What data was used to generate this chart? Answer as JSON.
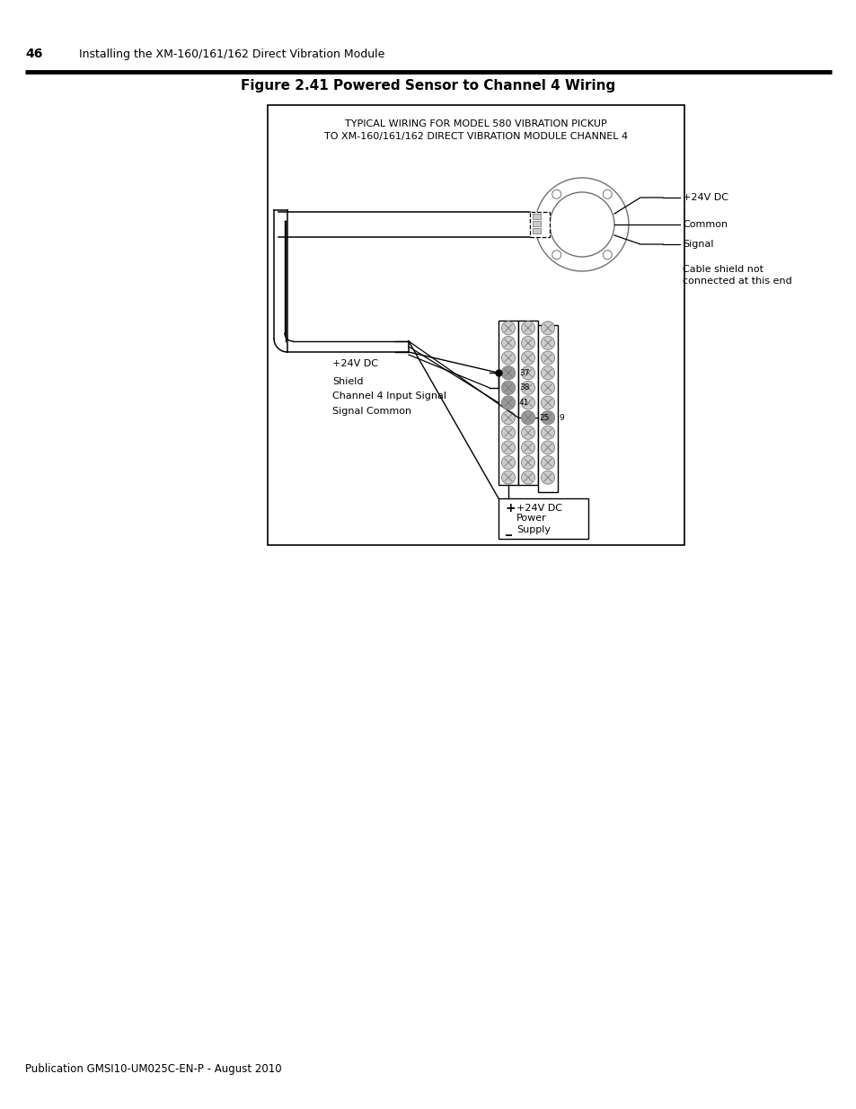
{
  "page_number": "46",
  "page_header": "Installing the XM-160/161/162 Direct Vibration Module",
  "footer_text": "Publication GMSI10-UM025C-EN-P - August 2010",
  "figure_title": "Figure 2.41 Powered Sensor to Channel 4 Wiring",
  "diagram_title_line1": "TYPICAL WIRING FOR MODEL 580 VIBRATION PICKUP",
  "diagram_title_line2": "TO XM-160/161/162 DIRECT VIBRATION MODULE CHANNEL 4",
  "label_24v_dc": "+24V DC",
  "label_common": "Common",
  "label_signal": "Signal",
  "label_cable_shield1": "Cable shield not",
  "label_cable_shield2": "connected at this end",
  "label_wire_24v": "+24V DC",
  "label_shield": "Shield",
  "label_ch4": "Channel 4 Input Signal",
  "label_sig_common": "Signal Common",
  "label_plus": "+",
  "label_minus": "_",
  "label_ps1": "+24V DC",
  "label_ps2": "Power",
  "label_ps3": "Supply",
  "pin_37": "37",
  "pin_38": "38",
  "pin_41": "41",
  "pin_25": "25",
  "pin_9": "9",
  "bg": "#ffffff",
  "black": "#000000",
  "gray_screw": "#b0b0b0",
  "gray_screw_dark": "#888888",
  "gray_pin": "#999999"
}
